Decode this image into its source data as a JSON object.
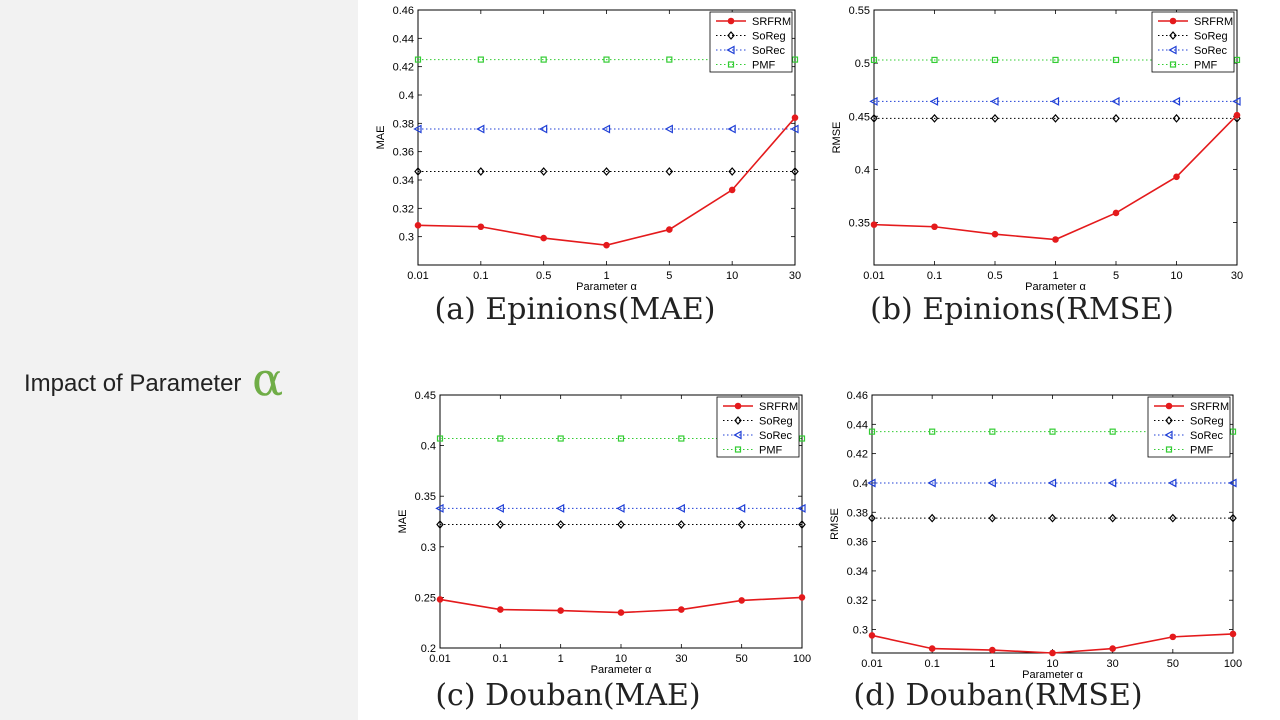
{
  "slide": {
    "title": "Impact of Parameter",
    "symbol": "α"
  },
  "colors": {
    "SRFRM": "#e41a1c",
    "SoReg": "#000000",
    "SoRec": "#1f3fd6",
    "PMF": "#33cc33"
  },
  "chart_data": [
    {
      "type": "line",
      "caption": "(a) Epinions(MAE)",
      "title": "",
      "xlabel": "Parameter α",
      "ylabel": "MAE",
      "categories": [
        "0.01",
        "0.1",
        "0.5",
        "1",
        "5",
        "10",
        "30"
      ],
      "ylim": [
        0.28,
        0.46
      ],
      "yticks": [
        "0.3",
        "0.32",
        "0.34",
        "0.36",
        "0.38",
        "0.4",
        "0.42",
        "0.44",
        "0.46"
      ],
      "ytick_values": [
        0.3,
        0.32,
        0.34,
        0.36,
        0.38,
        0.4,
        0.42,
        0.44,
        0.46
      ],
      "legend_position": "top-right",
      "series": [
        {
          "name": "SRFRM",
          "values": [
            0.308,
            0.307,
            0.299,
            0.294,
            0.305,
            0.333,
            0.384
          ]
        },
        {
          "name": "SoReg",
          "values": [
            0.346,
            0.346,
            0.346,
            0.346,
            0.346,
            0.346,
            0.346
          ]
        },
        {
          "name": "SoRec",
          "values": [
            0.376,
            0.376,
            0.376,
            0.376,
            0.376,
            0.376,
            0.376
          ]
        },
        {
          "name": "PMF",
          "values": [
            0.425,
            0.425,
            0.425,
            0.425,
            0.425,
            0.425,
            0.425
          ]
        }
      ]
    },
    {
      "type": "line",
      "caption": "(b) Epinions(RMSE)",
      "title": "",
      "xlabel": "Parameter α",
      "ylabel": "RMSE",
      "categories": [
        "0.01",
        "0.1",
        "0.5",
        "1",
        "5",
        "10",
        "30"
      ],
      "ylim": [
        0.31,
        0.55
      ],
      "yticks": [
        "0.35",
        "0.4",
        "0.45",
        "0.5",
        "0.55"
      ],
      "ytick_values": [
        0.35,
        0.4,
        0.45,
        0.5,
        0.55
      ],
      "legend_position": "top-right",
      "series": [
        {
          "name": "SRFRM",
          "values": [
            0.348,
            0.346,
            0.339,
            0.334,
            0.359,
            0.393,
            0.451
          ]
        },
        {
          "name": "SoReg",
          "values": [
            0.448,
            0.448,
            0.448,
            0.448,
            0.448,
            0.448,
            0.448
          ]
        },
        {
          "name": "SoRec",
          "values": [
            0.464,
            0.464,
            0.464,
            0.464,
            0.464,
            0.464,
            0.464
          ]
        },
        {
          "name": "PMF",
          "values": [
            0.503,
            0.503,
            0.503,
            0.503,
            0.503,
            0.503,
            0.503
          ]
        }
      ]
    },
    {
      "type": "line",
      "caption": "(c) Douban(MAE)",
      "title": "",
      "xlabel": "Parameter α",
      "ylabel": "MAE",
      "categories": [
        "0.01",
        "0.1",
        "1",
        "10",
        "30",
        "50",
        "100"
      ],
      "ylim": [
        0.2,
        0.45
      ],
      "yticks": [
        "0.2",
        "0.25",
        "0.3",
        "0.35",
        "0.4",
        "0.45"
      ],
      "ytick_values": [
        0.2,
        0.25,
        0.3,
        0.35,
        0.4,
        0.45
      ],
      "legend_position": "top-right",
      "series": [
        {
          "name": "SRFRM",
          "values": [
            0.248,
            0.238,
            0.237,
            0.235,
            0.238,
            0.247,
            0.25
          ]
        },
        {
          "name": "SoReg",
          "values": [
            0.322,
            0.322,
            0.322,
            0.322,
            0.322,
            0.322,
            0.322
          ]
        },
        {
          "name": "SoRec",
          "values": [
            0.338,
            0.338,
            0.338,
            0.338,
            0.338,
            0.338,
            0.338
          ]
        },
        {
          "name": "PMF",
          "values": [
            0.407,
            0.407,
            0.407,
            0.407,
            0.407,
            0.407,
            0.407
          ]
        }
      ]
    },
    {
      "type": "line",
      "caption": "(d) Douban(RMSE)",
      "title": "",
      "xlabel": "Parameter α",
      "ylabel": "RMSE",
      "categories": [
        "0.01",
        "0.1",
        "1",
        "10",
        "30",
        "50",
        "100"
      ],
      "ylim": [
        0.284,
        0.46
      ],
      "yticks": [
        "0.3",
        "0.32",
        "0.34",
        "0.36",
        "0.38",
        "0.4",
        "0.42",
        "0.44",
        "0.46"
      ],
      "ytick_values": [
        0.3,
        0.32,
        0.34,
        0.36,
        0.38,
        0.4,
        0.42,
        0.44,
        0.46
      ],
      "legend_position": "top-right",
      "series": [
        {
          "name": "SRFRM",
          "values": [
            0.296,
            0.287,
            0.286,
            0.284,
            0.287,
            0.295,
            0.297
          ]
        },
        {
          "name": "SoReg",
          "values": [
            0.376,
            0.376,
            0.376,
            0.376,
            0.376,
            0.376,
            0.376
          ]
        },
        {
          "name": "SoRec",
          "values": [
            0.4,
            0.4,
            0.4,
            0.4,
            0.4,
            0.4,
            0.4
          ]
        },
        {
          "name": "PMF",
          "values": [
            0.435,
            0.435,
            0.435,
            0.435,
            0.435,
            0.435,
            0.435
          ]
        }
      ]
    }
  ]
}
